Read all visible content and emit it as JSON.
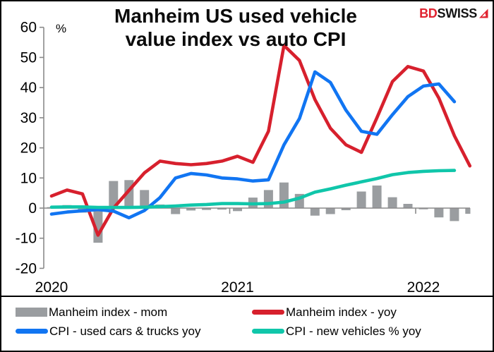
{
  "header": {
    "title_line1": "Manheim US used vehicle",
    "title_line2": "value index vs auto CPI",
    "logo_bd": "BD",
    "logo_swiss": "SWISS"
  },
  "chart_data": {
    "type": "bar+line combo",
    "unit_label": "%",
    "ylim": [
      -20,
      60
    ],
    "y_ticks": [
      60,
      50,
      40,
      30,
      20,
      10,
      0,
      -10,
      -20
    ],
    "x_year_labels": [
      "2020",
      "2021",
      "2022"
    ],
    "grid": "off",
    "legend_position": "bottom-boxed",
    "x": [
      "Jan 2020",
      "Feb 2020",
      "Mar 2020",
      "Apr 2020",
      "May 2020",
      "Jun 2020",
      "Jul 2020",
      "Aug 2020",
      "Sep 2020",
      "Oct 2020",
      "Nov 2020",
      "Dec 2020",
      "Jan 2021",
      "Feb 2021",
      "Mar 2021",
      "Apr 2021",
      "May 2021",
      "Jun 2021",
      "Jul 2021",
      "Aug 2021",
      "Sep 2021",
      "Oct 2021",
      "Nov 2021",
      "Dec 2021",
      "Jan 2022",
      "Feb 2022",
      "Mar 2022",
      "Apr 2022"
    ],
    "series": [
      {
        "name": "Manheim index - mom",
        "type": "bar",
        "color": "#9a9da0",
        "values": [
          0.3,
          1.0,
          -1.5,
          -11.5,
          9.0,
          9.3,
          6.0,
          1.2,
          -2.0,
          -0.8,
          -0.6,
          -0.5,
          -1.0,
          3.5,
          6.0,
          8.5,
          4.7,
          -2.5,
          -2.0,
          -0.7,
          5.5,
          7.5,
          3.6,
          1.4,
          -0.4,
          -3.1,
          -4.3,
          -1.9
        ]
      },
      {
        "name": "Manheim index - yoy",
        "type": "line",
        "color": "#d7202d",
        "values": [
          4.0,
          6.0,
          4.7,
          -9.0,
          0.0,
          5.9,
          11.7,
          15.6,
          14.8,
          14.4,
          14.8,
          15.6,
          17.2,
          15.2,
          25.5,
          54.0,
          49.0,
          36.0,
          26.5,
          21.0,
          18.5,
          30.0,
          42.0,
          47.0,
          45.5,
          36.5,
          24.0,
          14.0
        ]
      },
      {
        "name": "CPI - used cars & trucks yoy",
        "type": "line",
        "color": "#1175f2",
        "values": [
          -2.0,
          -1.3,
          -0.9,
          -0.5,
          -1.0,
          -3.2,
          -0.8,
          3.5,
          10.0,
          11.5,
          11.0,
          10.0,
          9.7,
          9.0,
          9.4,
          21.0,
          29.7,
          45.2,
          41.7,
          32.5,
          25.5,
          24.5,
          31.0,
          37.0,
          40.5,
          41.2,
          35.3,
          null
        ]
      },
      {
        "name": "CPI - new vehicles % yoy",
        "type": "line",
        "color": "#10c6aa",
        "values": [
          0.3,
          0.4,
          0.4,
          0.2,
          0.2,
          0.2,
          0.3,
          0.5,
          0.7,
          1.0,
          1.2,
          1.5,
          1.5,
          1.4,
          1.5,
          2.0,
          3.3,
          5.3,
          6.4,
          7.6,
          8.7,
          9.8,
          11.1,
          11.8,
          12.2,
          12.4,
          12.5,
          null
        ]
      }
    ]
  }
}
